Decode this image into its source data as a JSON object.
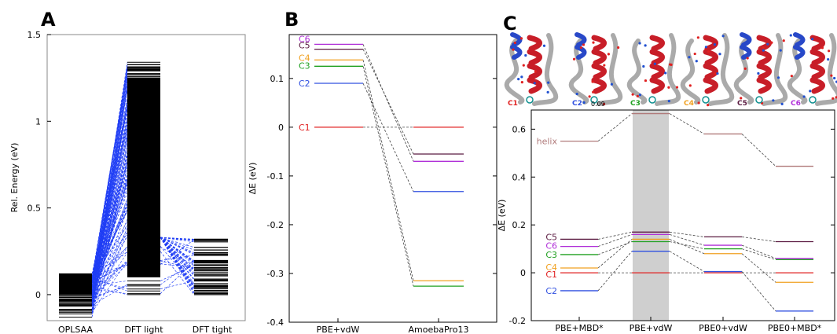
{
  "panels": {
    "a": "A",
    "b": "B",
    "c": "C"
  },
  "chart_data": [
    {
      "panel": "A",
      "type": "line",
      "title": "",
      "xlabel": "",
      "ylabel": "Rel. Energy (eV)",
      "categories": [
        "OPLSAA",
        "DFT light",
        "DFT tight"
      ],
      "ylim": [
        -0.15,
        1.5
      ],
      "yticks": [
        0,
        0.5,
        1,
        1.5
      ],
      "ytick_labels": [
        "0",
        "0.5",
        "1",
        "1.5"
      ],
      "grid": false,
      "level_counts": {
        "OPLSAA": 60,
        "DFT light": 150,
        "DFT tight": 45
      },
      "range": {
        "OPLSAA": [
          -0.13,
          0.12
        ],
        "DFT light": [
          0,
          1.34
        ],
        "DFT tight": [
          0,
          0.32
        ]
      },
      "colors": {
        "levels": "#000000",
        "connectors": "#1f3df5"
      }
    },
    {
      "panel": "B",
      "type": "line",
      "title": "",
      "xlabel": "",
      "ylabel": "ΔE (eV)",
      "categories": [
        "PBE+vdW",
        "AmoebaPro13"
      ],
      "ylim": [
        -0.4,
        0.19
      ],
      "yticks": [
        -0.4,
        -0.3,
        -0.2,
        -0.1,
        0,
        0.1
      ],
      "ytick_labels": [
        "-0.4",
        "-0.3",
        "-0.2",
        "-0.1",
        "0",
        "0.1"
      ],
      "grid": false,
      "series": [
        {
          "name": "C6",
          "color": "#b030d8",
          "values": [
            0.17,
            -0.07
          ]
        },
        {
          "name": "C5",
          "color": "#5a1a40",
          "values": [
            0.16,
            -0.055
          ]
        },
        {
          "name": "C4",
          "color": "#f0a020",
          "values": [
            0.138,
            -0.315
          ]
        },
        {
          "name": "C3",
          "color": "#20a020",
          "values": [
            0.125,
            -0.326
          ]
        },
        {
          "name": "C2",
          "color": "#3050e0",
          "values": [
            0.09,
            -0.132
          ]
        },
        {
          "name": "C1",
          "color": "#e02020",
          "values": [
            0,
            0
          ]
        }
      ]
    },
    {
      "panel": "C",
      "type": "line",
      "title": "",
      "xlabel": "",
      "ylabel": "ΔE (eV)",
      "categories": [
        "PBE+MBD*",
        "PBE+vdW",
        "PBE0+vdW",
        "PBE0+MBD*"
      ],
      "highlight_category": "PBE+vdW",
      "ylim": [
        -0.2,
        0.68
      ],
      "yticks": [
        -0.2,
        0,
        0.2,
        0.4,
        0.6
      ],
      "ytick_labels": [
        "-0.2",
        "0",
        "0.2",
        "0.4",
        "0.6"
      ],
      "grid": false,
      "series": [
        {
          "name": "helix",
          "color": "#b07a7a",
          "values": [
            0.55,
            0.665,
            0.58,
            0.445
          ]
        },
        {
          "name": "C5",
          "color": "#5a1a40",
          "values": [
            0.14,
            0.17,
            0.15,
            0.13
          ]
        },
        {
          "name": "C6",
          "color": "#b030d8",
          "values": [
            0.11,
            0.16,
            0.115,
            0.06
          ]
        },
        {
          "name": "C3",
          "color": "#20a020",
          "values": [
            0.076,
            0.13,
            0.1,
            0.055
          ]
        },
        {
          "name": "C4",
          "color": "#f0a020",
          "values": [
            0.02,
            0.14,
            0.08,
            -0.04
          ]
        },
        {
          "name": "C1",
          "color": "#e02020",
          "values": [
            0,
            0,
            0,
            0
          ]
        },
        {
          "name": "C2",
          "color": "#3050e0",
          "values": [
            -0.075,
            0.09,
            0.005,
            -0.16
          ]
        }
      ],
      "structures": [
        {
          "label": "C1",
          "color": "#e02020",
          "annotation": ""
        },
        {
          "label": "C2",
          "color": "#3050e0",
          "annotation": "0.09"
        },
        {
          "label": "C3",
          "color": "#20a020",
          "annotation": ""
        },
        {
          "label": "C4",
          "color": "#f0a020",
          "annotation": ""
        },
        {
          "label": "C5",
          "color": "#5a1a40",
          "annotation": ""
        },
        {
          "label": "C6",
          "color": "#b030d8",
          "annotation": ""
        }
      ]
    }
  ]
}
